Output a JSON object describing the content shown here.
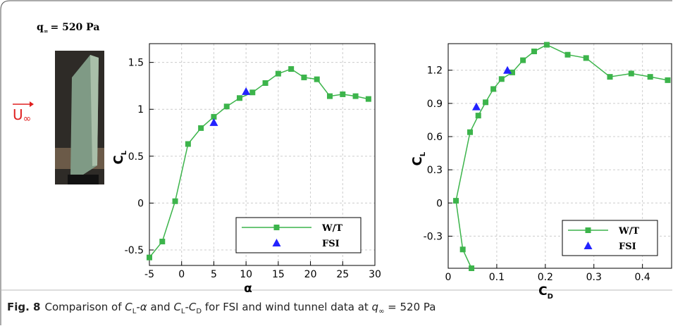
{
  "header": {
    "symbol": "q",
    "sub": "∞",
    "text": "= 520 Pa"
  },
  "flow_label": {
    "text": "U",
    "sub": "∞"
  },
  "caption": {
    "label": "Fig. 8",
    "parts": [
      {
        "text": "Comparison of "
      },
      {
        "italic": "C"
      },
      {
        "sub": "L"
      },
      {
        "text": "-"
      },
      {
        "italic": "α"
      },
      {
        "text": " and "
      },
      {
        "italic": "C"
      },
      {
        "sub": "L"
      },
      {
        "text": "-"
      },
      {
        "italic": "C"
      },
      {
        "sub": "D"
      },
      {
        "text": " for FSI and wind tunnel data at "
      },
      {
        "italic": "q"
      },
      {
        "sub": "∞"
      },
      {
        "text": " = 520 Pa"
      }
    ]
  },
  "chart_data": [
    {
      "type": "line",
      "xlabel": {
        "text": "α"
      },
      "ylabel": {
        "text": "C",
        "sub": "L"
      },
      "xlim": [
        -5,
        30
      ],
      "xticks": [
        -5,
        0,
        5,
        10,
        15,
        20,
        25,
        30
      ],
      "ylim": [
        -0.665,
        1.7
      ],
      "yticks": [
        -0.5,
        0,
        0.5,
        1,
        1.5
      ],
      "grid": true,
      "legend": "lower right",
      "series": [
        {
          "name": "W/T",
          "color": "#3cb44b",
          "marker": "square",
          "line": true,
          "x": [
            -5,
            -3,
            -1,
            1,
            3,
            5,
            7,
            9,
            11,
            13,
            15,
            17,
            19,
            21,
            23,
            25,
            27,
            29
          ],
          "values": [
            -0.58,
            -0.41,
            0.02,
            0.63,
            0.8,
            0.92,
            1.03,
            1.12,
            1.18,
            1.28,
            1.38,
            1.43,
            1.34,
            1.32,
            1.14,
            1.16,
            1.14,
            1.11
          ]
        },
        {
          "name": "FSI",
          "color": "#2323ff",
          "marker": "triangle",
          "line": false,
          "x": [
            5,
            10
          ],
          "values": [
            0.86,
            1.19
          ]
        }
      ]
    },
    {
      "type": "line",
      "xlabel": {
        "text": "C",
        "sub": "D"
      },
      "ylabel": {
        "text": "C",
        "sub": "L"
      },
      "xlim": [
        0,
        0.46
      ],
      "xticks": [
        0,
        0.1,
        0.2,
        0.3,
        0.4
      ],
      "ylim": [
        -0.59,
        1.44
      ],
      "yticks": [
        -0.3,
        0,
        0.3,
        0.6,
        0.9,
        1.2
      ],
      "grid": true,
      "legend": "lower right",
      "series": [
        {
          "name": "W/T",
          "color": "#3cb44b",
          "marker": "square",
          "line": true,
          "x": [
            0.048,
            0.03,
            0.016,
            0.045,
            0.062,
            0.077,
            0.093,
            0.11,
            0.132,
            0.154,
            0.177,
            0.203,
            0.246,
            0.284,
            0.333,
            0.377,
            0.416,
            0.452
          ],
          "values": [
            -0.59,
            -0.42,
            0.02,
            0.64,
            0.79,
            0.91,
            1.03,
            1.12,
            1.18,
            1.29,
            1.37,
            1.43,
            1.34,
            1.31,
            1.14,
            1.17,
            1.14,
            1.11
          ]
        },
        {
          "name": "FSI",
          "color": "#2323ff",
          "marker": "triangle",
          "line": false,
          "x": [
            0.058,
            0.122
          ],
          "values": [
            0.87,
            1.2
          ]
        }
      ]
    }
  ]
}
